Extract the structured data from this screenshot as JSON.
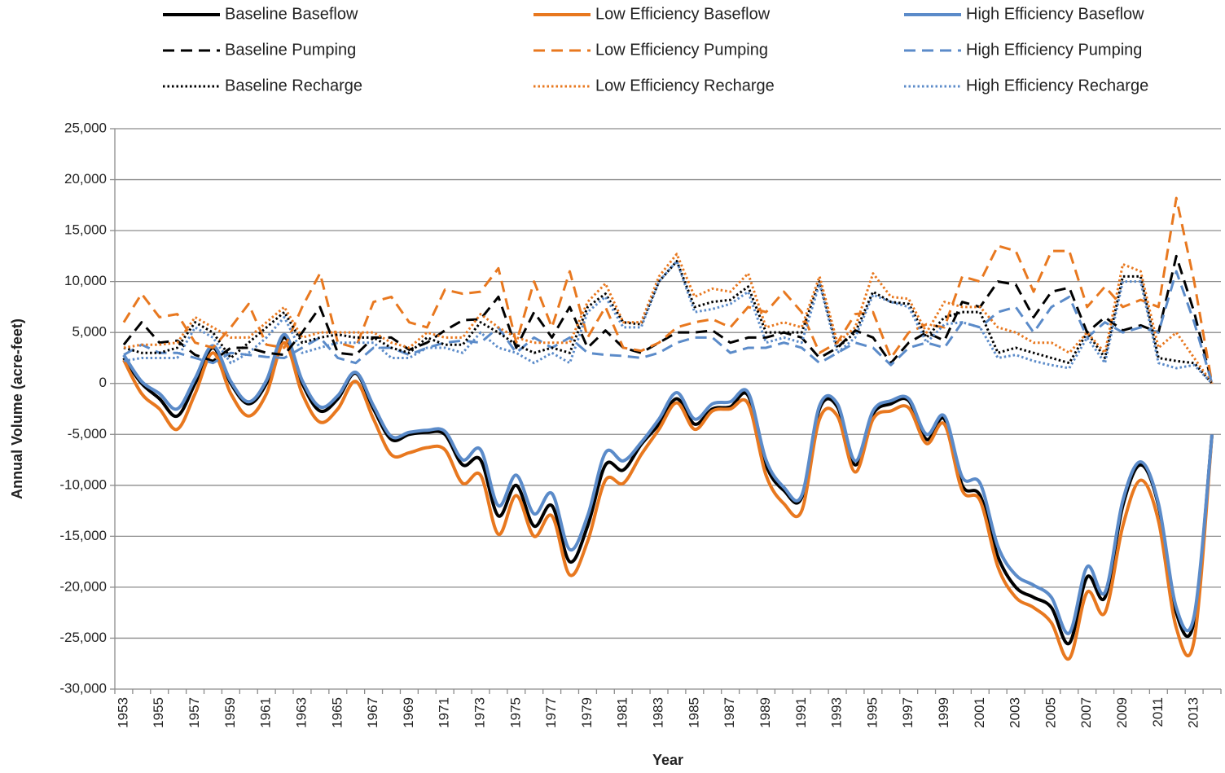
{
  "chart_data": {
    "type": "line",
    "y_label": "Annual Volume (acre-feet)",
    "x_label": "Year",
    "categories": [
      "1953",
      null,
      "1955",
      null,
      "1957",
      null,
      "1959",
      null,
      "1961",
      null,
      "1963",
      null,
      "1965",
      null,
      "1967",
      null,
      "1969",
      null,
      "1971",
      null,
      "1973",
      null,
      "1975",
      null,
      "1977",
      null,
      "1979",
      null,
      "1981",
      null,
      "1983",
      null,
      "1985",
      null,
      "1987",
      null,
      "1989",
      null,
      "1991",
      null,
      "1993",
      null,
      "1995",
      null,
      "1997",
      null,
      "1999",
      null,
      "2001",
      null,
      "2003",
      null,
      "2005",
      null,
      "2007",
      null,
      "2009",
      null,
      "2011",
      null,
      "2013",
      null
    ],
    "ylim": [
      -30000,
      25000
    ],
    "yticks": [
      {
        "value": -30000,
        "label": "-30,000"
      },
      {
        "value": -25000,
        "label": "-25,000"
      },
      {
        "value": -20000,
        "label": "-20,000"
      },
      {
        "value": -15000,
        "label": "-15,000"
      },
      {
        "value": -10000,
        "label": "-10,000"
      },
      {
        "value": -5000,
        "label": "-5,000"
      },
      0,
      {
        "value": 5000,
        "label": "5,000"
      },
      {
        "value": 10000,
        "label": "10,000"
      },
      {
        "value": 15000,
        "label": "15,000"
      },
      {
        "value": 20000,
        "label": "20,000"
      },
      {
        "value": 25000,
        "label": "25,000"
      }
    ],
    "grid": true,
    "legend": "top",
    "series": [
      {
        "name": "Baseline Baseflow",
        "color": "#000000",
        "dash": "solid",
        "smooth": true,
        "values": [
          2500,
          0,
          -1500,
          -3200,
          0,
          3500,
          0,
          -2000,
          0,
          4500,
          0,
          -2700,
          -1500,
          1000,
          -2500,
          -5500,
          -5000,
          -4800,
          -5000,
          -8000,
          -7500,
          -13000,
          -10000,
          -14000,
          -12000,
          -17500,
          -14000,
          -8000,
          -8500,
          -6000,
          -4000,
          -1500,
          -4000,
          -2500,
          -2300,
          -1200,
          -8000,
          -10500,
          -11200,
          -2500,
          -2300,
          -8000,
          -3000,
          -2000,
          -1700,
          -5500,
          -3500,
          -10000,
          -11000,
          -17000,
          -20000,
          -21000,
          -22000,
          -25500,
          -19000,
          -21000,
          -12000,
          -8000,
          -12000,
          -22500,
          -23300,
          -5000
        ]
      },
      {
        "name": "Low Efficiency Baseflow",
        "color": "#e8781f",
        "dash": "solid",
        "smooth": true,
        "values": [
          2300,
          -1000,
          -2500,
          -4500,
          -1000,
          3000,
          -1000,
          -3200,
          -1000,
          4000,
          -1000,
          -3800,
          -2500,
          200,
          -3500,
          -7000,
          -6800,
          -6300,
          -6500,
          -9800,
          -9000,
          -14800,
          -11000,
          -15000,
          -13000,
          -18800,
          -15500,
          -9500,
          -9800,
          -7000,
          -4500,
          -1900,
          -4500,
          -2700,
          -2500,
          -2000,
          -9000,
          -11800,
          -12500,
          -3500,
          -3200,
          -8700,
          -3500,
          -2700,
          -2400,
          -5900,
          -4000,
          -10500,
          -11500,
          -18000,
          -21000,
          -22000,
          -23500,
          -27000,
          -20500,
          -22500,
          -14000,
          -9500,
          -13500,
          -24000,
          -25200,
          -5000
        ]
      },
      {
        "name": "High Efficiency Baseflow",
        "color": "#5b8bc9",
        "dash": "solid",
        "smooth": true,
        "values": [
          2800,
          200,
          -1000,
          -2500,
          500,
          3700,
          200,
          -1800,
          300,
          4800,
          300,
          -2300,
          -1200,
          1100,
          -2200,
          -5200,
          -4800,
          -4600,
          -4700,
          -7500,
          -6500,
          -12000,
          -9000,
          -12800,
          -10800,
          -16300,
          -13000,
          -6800,
          -7600,
          -5800,
          -3500,
          -900,
          -3500,
          -2000,
          -1800,
          -900,
          -7500,
          -10200,
          -11000,
          -2200,
          -2000,
          -7600,
          -2700,
          -1700,
          -1500,
          -5000,
          -3200,
          -9200,
          -9800,
          -16000,
          -18800,
          -19800,
          -21000,
          -24500,
          -18000,
          -20500,
          -11500,
          -7700,
          -11800,
          -22000,
          -22800,
          -5000
        ]
      },
      {
        "name": "Baseline Pumping",
        "color": "#000000",
        "dash": "dash",
        "smooth": false,
        "values": [
          3800,
          6000,
          4000,
          4200,
          2800,
          2200,
          3500,
          3500,
          3000,
          2800,
          5000,
          7500,
          3000,
          2800,
          4500,
          4500,
          3300,
          4000,
          5200,
          6200,
          6300,
          8500,
          3500,
          7000,
          4500,
          7500,
          3500,
          5200,
          3500,
          3000,
          4000,
          5000,
          5000,
          5200,
          4000,
          4500,
          4500,
          5000,
          4500,
          2500,
          3500,
          5200,
          4500,
          2000,
          4000,
          5000,
          4200,
          8000,
          7500,
          10000,
          9700,
          6500,
          9000,
          9400,
          5000,
          6500,
          5200,
          5700,
          5000,
          12500,
          7000,
          0
        ]
      },
      {
        "name": "Low Efficiency Pumping",
        "color": "#e8781f",
        "dash": "dash",
        "smooth": false,
        "values": [
          6000,
          8800,
          6500,
          6800,
          4000,
          3500,
          5500,
          7800,
          3800,
          3500,
          7500,
          10800,
          4000,
          3500,
          8000,
          8500,
          6000,
          5500,
          9200,
          8800,
          9000,
          11300,
          4000,
          10000,
          5500,
          11000,
          4500,
          7500,
          3500,
          3200,
          4000,
          5500,
          6000,
          6300,
          5500,
          7500,
          7000,
          9000,
          7000,
          3000,
          4000,
          6800,
          7000,
          2500,
          5000,
          5800,
          5500,
          10500,
          10000,
          13500,
          13000,
          9000,
          13000,
          13000,
          7500,
          9500,
          7500,
          8200,
          7500,
          18200,
          10000,
          0
        ]
      },
      {
        "name": "High Efficiency Pumping",
        "color": "#5b8bc9",
        "dash": "dash",
        "smooth": false,
        "values": [
          2800,
          3800,
          3000,
          3000,
          2500,
          2000,
          3000,
          2800,
          2600,
          2500,
          3500,
          4500,
          2500,
          2000,
          3500,
          3500,
          2800,
          3500,
          4000,
          4200,
          4000,
          5500,
          3000,
          4500,
          3500,
          4500,
          3000,
          2800,
          2700,
          2500,
          3000,
          4000,
          4500,
          4500,
          3000,
          3500,
          3500,
          4000,
          3500,
          2000,
          3000,
          4000,
          3500,
          1800,
          3500,
          4000,
          3500,
          6000,
          5500,
          7000,
          7500,
          5000,
          7500,
          8500,
          4500,
          6000,
          5000,
          5500,
          5000,
          11000,
          6000,
          0
        ]
      },
      {
        "name": "Baseline Recharge",
        "color": "#000000",
        "dash": "dot",
        "smooth": false,
        "values": [
          3500,
          3000,
          3000,
          3500,
          6000,
          5000,
          2500,
          4000,
          5500,
          7000,
          4000,
          4500,
          4800,
          4500,
          4500,
          3500,
          3000,
          4500,
          3800,
          3800,
          6000,
          5000,
          3800,
          3000,
          3500,
          3000,
          7500,
          8800,
          6000,
          5800,
          10000,
          12000,
          7500,
          8000,
          8200,
          9500,
          5000,
          5000,
          5000,
          10000,
          3500,
          5000,
          9000,
          8000,
          7800,
          4500,
          6500,
          7000,
          7000,
          3000,
          3500,
          3000,
          2500,
          2000,
          5000,
          2500,
          10500,
          10500,
          2500,
          2200,
          2000,
          0
        ]
      },
      {
        "name": "Low Efficiency Recharge",
        "color": "#e8781f",
        "dash": "dot",
        "smooth": false,
        "values": [
          3500,
          3800,
          3800,
          4000,
          6500,
          5500,
          4500,
          4500,
          6000,
          7500,
          4500,
          5000,
          5000,
          5000,
          5000,
          4000,
          3500,
          5000,
          4500,
          4500,
          6800,
          5500,
          4500,
          4000,
          4000,
          4000,
          8000,
          9800,
          6000,
          6000,
          10500,
          12700,
          8500,
          9300,
          9000,
          10800,
          5500,
          6000,
          5500,
          10500,
          4000,
          5500,
          10800,
          8500,
          8300,
          5000,
          8000,
          7500,
          7500,
          5500,
          5000,
          4000,
          4000,
          3000,
          5000,
          3000,
          11700,
          11000,
          3500,
          5000,
          2500,
          0
        ]
      },
      {
        "name": "High Efficiency Recharge",
        "color": "#5b8bc9",
        "dash": "dot",
        "smooth": false,
        "values": [
          2200,
          2500,
          2500,
          2500,
          5500,
          4500,
          2000,
          3000,
          4500,
          6500,
          3000,
          3500,
          4000,
          4000,
          4000,
          2500,
          2500,
          3500,
          3500,
          3000,
          5000,
          3500,
          3000,
          2000,
          3000,
          2000,
          7000,
          8500,
          5500,
          5500,
          10000,
          12000,
          7000,
          7300,
          7800,
          9000,
          4000,
          4500,
          4000,
          9800,
          3000,
          4500,
          8700,
          8000,
          7500,
          4000,
          5800,
          6000,
          5500,
          2500,
          2800,
          2200,
          1800,
          1500,
          4500,
          2000,
          10000,
          10000,
          2000,
          1500,
          1800,
          0
        ]
      }
    ]
  }
}
